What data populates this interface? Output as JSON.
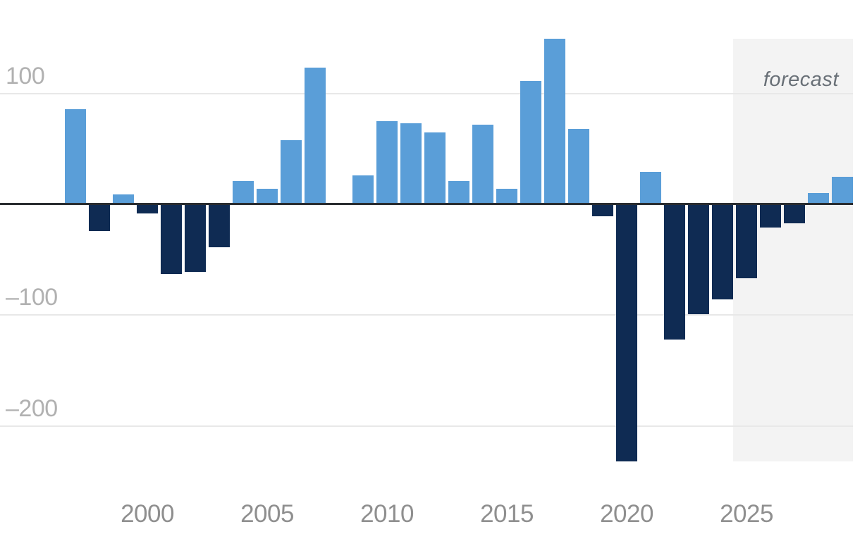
{
  "chart_data": {
    "type": "bar",
    "title": "",
    "x": [
      1997,
      1998,
      1999,
      2000,
      2001,
      2002,
      2003,
      2004,
      2005,
      2006,
      2007,
      2008,
      2009,
      2010,
      2011,
      2012,
      2013,
      2014,
      2015,
      2016,
      2017,
      2018,
      2019,
      2020,
      2021,
      2022,
      2023,
      2024,
      2025,
      2026,
      2027,
      2028,
      2029
    ],
    "values": [
      86,
      -24,
      9,
      -8,
      -63,
      -61,
      -39,
      21,
      14,
      58,
      123,
      1,
      26,
      75,
      73,
      65,
      21,
      72,
      14,
      111,
      149,
      68,
      -11,
      -232,
      29,
      -122,
      -99,
      -86,
      -67,
      -21,
      -17,
      10,
      25
    ],
    "xlabel": "",
    "ylabel": "",
    "ylim": [
      -240,
      150
    ],
    "grid": true,
    "legend_position": "none",
    "yticks": [
      {
        "value": 100,
        "label": "100"
      },
      {
        "value": -100,
        "label": "–100"
      },
      {
        "value": -200,
        "label": "–200"
      }
    ],
    "xticks": [
      {
        "year": 2000,
        "label": "2000"
      },
      {
        "year": 2005,
        "label": "2005"
      },
      {
        "year": 2010,
        "label": "2010"
      },
      {
        "year": 2015,
        "label": "2015"
      },
      {
        "year": 2020,
        "label": "2020"
      },
      {
        "year": 2025,
        "label": "2025"
      }
    ],
    "forecast": {
      "label": "forecast",
      "start_year": 2025
    },
    "colors": {
      "positive_bar": "#5a9ed8",
      "negative_bar": "#0f2b53",
      "axis_line": "#292c30",
      "gridline": "#e8e8e8",
      "y_tick_label": "#b1b1b1",
      "x_tick_label": "#8f8f8f",
      "forecast_background": "#f3f3f3",
      "forecast_label": "#697077"
    }
  }
}
